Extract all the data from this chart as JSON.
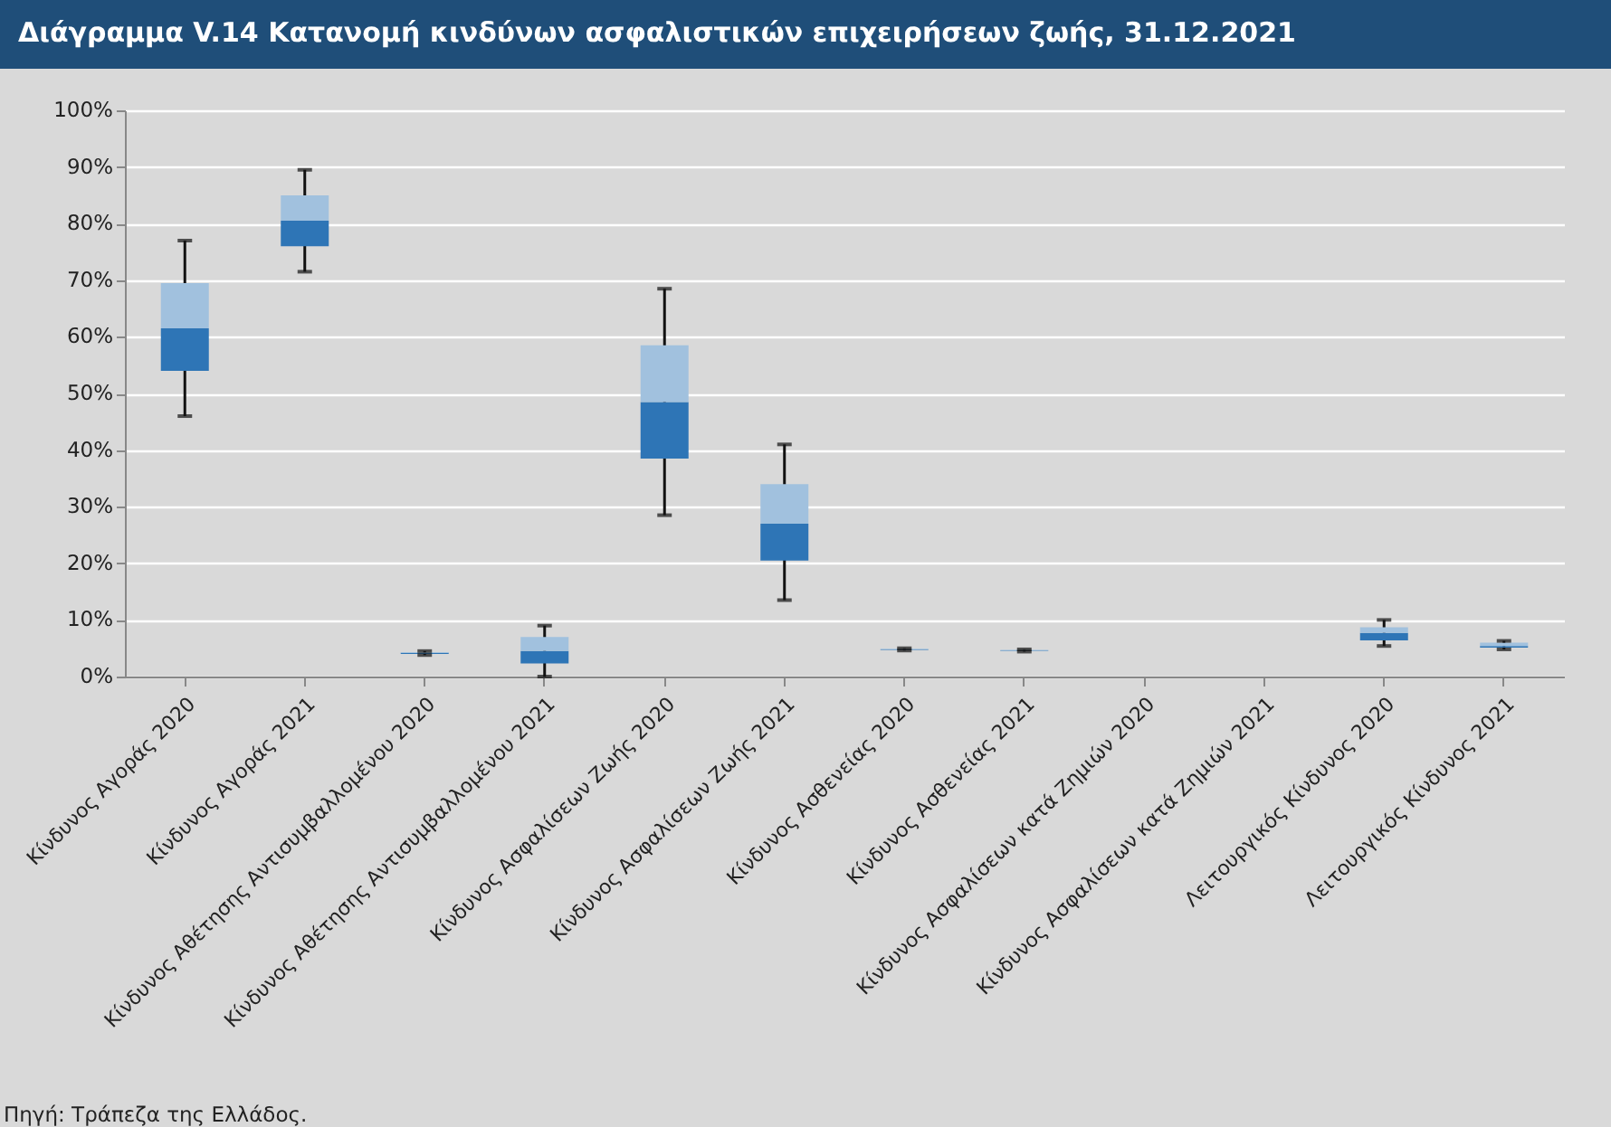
{
  "chart_data": {
    "type": "box",
    "title": "Διάγραμμα V.14 Κατανομή κινδύνων ασφαλιστικών επιχειρήσεων ζωής, 31.12.2021",
    "categories": [
      "Κίνδυνος Αγοράς  2020",
      "Κίνδυνος Αγοράς 2021",
      "Κίνδυνος Αθέτησης Αντισυμβαλλομένου 2020",
      "Κίνδυνος Αθέτησης Αντισυμβαλλομένου 2021",
      "Κίνδυνος Ασφαλίσεων Ζωής 2020",
      "Κίνδυνος Ασφαλίσεων Ζωής 2021",
      "Κίνδυνος Ασθενείας 2020",
      "Κίνδυνος Ασθενείας 2021",
      "Κίνδυνος Ασφαλίσεων κατά Ζημιών 2020",
      "Κίνδυνος Ασφαλίσεων κατά Ζημιών 2021",
      "Λειτουργικός Κίνδυνος 2020",
      "Λειτουργικός Κίνδυνος 2021"
    ],
    "series": [
      {
        "color": "#2e75b6",
        "boxes": [
          {
            "low": 46,
            "q1": 54,
            "median": 61.5,
            "q3": 69.5,
            "high": 77
          },
          {
            "low": 71.5,
            "q1": 76,
            "median": 80.5,
            "q3": 85,
            "high": 89.5
          },
          {
            "low": 3.8,
            "q1": 4,
            "median": 4.2,
            "q3": 4.3,
            "high": 4.5
          },
          {
            "low": 0,
            "q1": 2.3,
            "median": 4.5,
            "q3": 7,
            "high": 9
          },
          {
            "low": 28.5,
            "q1": 38.5,
            "median": 48.5,
            "q3": 58.5,
            "high": 68.5
          },
          {
            "low": 13.5,
            "q1": 20.5,
            "median": 27,
            "q3": 34,
            "high": 41
          },
          {
            "low": 4.6,
            "q1": 4.7,
            "median": 4.8,
            "q3": 4.9,
            "high": 5
          },
          {
            "low": 4.4,
            "q1": 4.5,
            "median": 4.6,
            "q3": 4.7,
            "high": 4.8
          },
          null,
          null,
          {
            "low": 5.4,
            "q1": 6.4,
            "median": 7.7,
            "q3": 8.7,
            "high": 10
          },
          {
            "low": 4.8,
            "q1": 5.1,
            "median": 5.4,
            "q3": 6,
            "high": 6.3
          }
        ]
      }
    ],
    "ylim": [
      0,
      100
    ],
    "yticks": [
      {
        "value": 0,
        "label": "0%"
      },
      {
        "value": 10,
        "label": "10%"
      },
      {
        "value": 20,
        "label": "20%"
      },
      {
        "value": 30,
        "label": "30%"
      },
      {
        "value": 40,
        "label": "40%"
      },
      {
        "value": 50,
        "label": "50%"
      },
      {
        "value": 60,
        "label": "60%"
      },
      {
        "value": 70,
        "label": "70%"
      },
      {
        "value": 80,
        "label": "80%"
      },
      {
        "value": 90,
        "label": "90%"
      },
      {
        "value": 100,
        "label": "100%"
      }
    ],
    "grid": "y",
    "annotations": [
      "Πηγή: Τράπεζα της Ελλάδος."
    ]
  }
}
